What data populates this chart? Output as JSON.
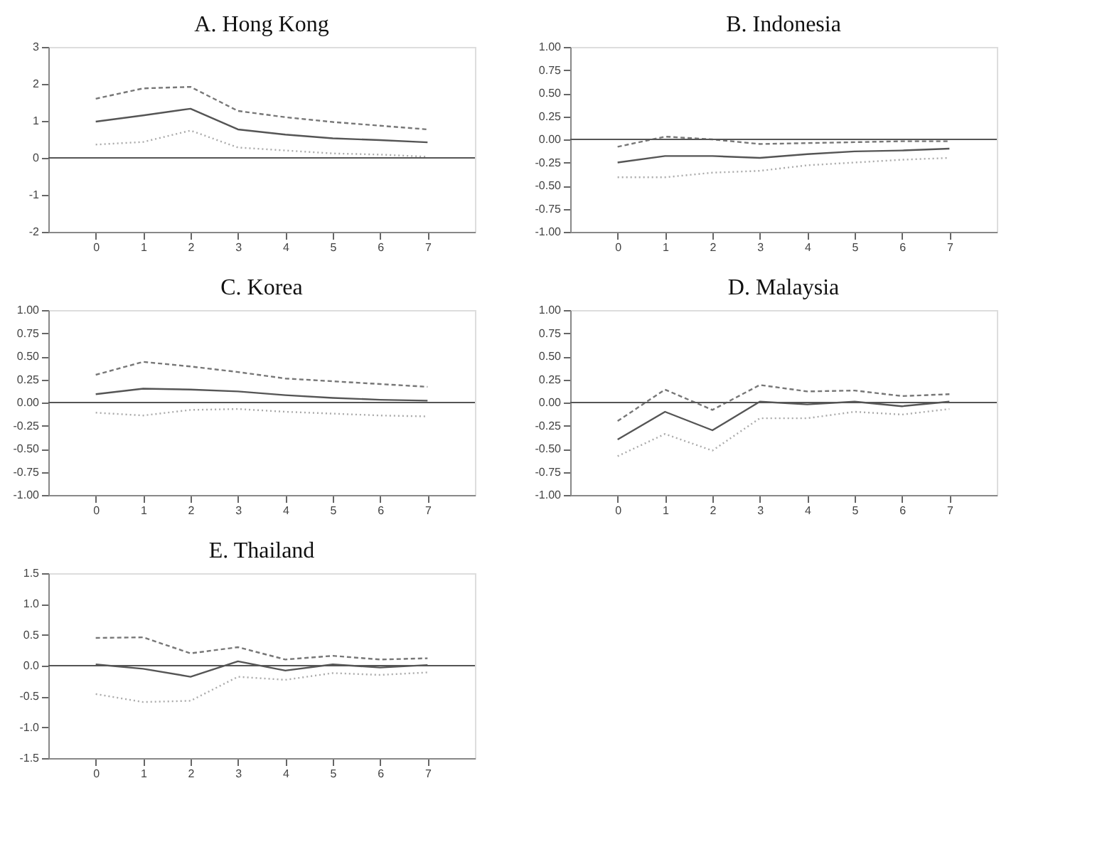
{
  "chart_data": [
    {
      "type": "line",
      "title": "A. Hong Kong",
      "x": [
        0,
        1,
        2,
        3,
        4,
        5,
        6,
        7
      ],
      "xlim": [
        -1,
        8
      ],
      "xticks": [
        0,
        1,
        2,
        3,
        4,
        5,
        6,
        7
      ],
      "ylim": [
        -2,
        3
      ],
      "yticks": [
        -2,
        -1,
        0,
        1,
        2,
        3
      ],
      "grid": false,
      "ref_lines": [
        {
          "axis": "y",
          "value": 0,
          "color": "#555555"
        }
      ],
      "series": [
        {
          "color": "#777777",
          "line_style": "dashed",
          "values": [
            1.6,
            1.88,
            1.92,
            1.27,
            1.1,
            0.97,
            0.87,
            0.77
          ]
        },
        {
          "color": "#555555",
          "line_style": "solid",
          "values": [
            0.98,
            1.15,
            1.33,
            0.77,
            0.63,
            0.53,
            0.48,
            0.42
          ]
        },
        {
          "color": "#aaaaaa",
          "line_style": "dotted",
          "values": [
            0.36,
            0.43,
            0.74,
            0.28,
            0.2,
            0.12,
            0.09,
            0.03
          ]
        }
      ]
    },
    {
      "type": "line",
      "title": "B. Indonesia",
      "x": [
        0,
        1,
        2,
        3,
        4,
        5,
        6,
        7
      ],
      "xlim": [
        -1,
        8
      ],
      "xticks": [
        0,
        1,
        2,
        3,
        4,
        5,
        6,
        7
      ],
      "ylim": [
        -1,
        1
      ],
      "yticks": [
        {
          "value": -1,
          "label": "-1.00"
        },
        {
          "value": -0.75,
          "label": "-0.75"
        },
        {
          "value": -0.5,
          "label": "-0.50"
        },
        {
          "value": -0.25,
          "label": "-0.25"
        },
        {
          "value": 0,
          "label": "0.00"
        },
        {
          "value": 0.25,
          "label": "0.25"
        },
        {
          "value": 0.5,
          "label": "0.50"
        },
        {
          "value": 0.75,
          "label": "0.75"
        },
        {
          "value": 1,
          "label": "1.00"
        }
      ],
      "grid": false,
      "ref_lines": [
        {
          "axis": "y",
          "value": 0,
          "color": "#555555"
        }
      ],
      "series": [
        {
          "color": "#777777",
          "line_style": "dashed",
          "values": [
            -0.08,
            0.03,
            0.0,
            -0.05,
            -0.04,
            -0.03,
            -0.02,
            -0.02
          ]
        },
        {
          "color": "#555555",
          "line_style": "solid",
          "values": [
            -0.25,
            -0.18,
            -0.18,
            -0.2,
            -0.16,
            -0.13,
            -0.12,
            -0.1
          ]
        },
        {
          "color": "#aaaaaa",
          "line_style": "dotted",
          "values": [
            -0.41,
            -0.41,
            -0.36,
            -0.34,
            -0.28,
            -0.25,
            -0.22,
            -0.2
          ]
        }
      ]
    },
    {
      "type": "line",
      "title": "C. Korea",
      "x": [
        0,
        1,
        2,
        3,
        4,
        5,
        6,
        7
      ],
      "xlim": [
        -1,
        8
      ],
      "xticks": [
        0,
        1,
        2,
        3,
        4,
        5,
        6,
        7
      ],
      "ylim": [
        -1,
        1
      ],
      "yticks": [
        {
          "value": -1,
          "label": "-1.00"
        },
        {
          "value": -0.75,
          "label": "-0.75"
        },
        {
          "value": -0.5,
          "label": "-0.50"
        },
        {
          "value": -0.25,
          "label": "-0.25"
        },
        {
          "value": 0,
          "label": "0.00"
        },
        {
          "value": 0.25,
          "label": "0.25"
        },
        {
          "value": 0.5,
          "label": "0.50"
        },
        {
          "value": 0.75,
          "label": "0.75"
        },
        {
          "value": 1,
          "label": "1.00"
        }
      ],
      "grid": false,
      "ref_lines": [
        {
          "axis": "y",
          "value": 0,
          "color": "#555555"
        }
      ],
      "series": [
        {
          "color": "#777777",
          "line_style": "dashed",
          "values": [
            0.3,
            0.44,
            0.39,
            0.33,
            0.26,
            0.23,
            0.2,
            0.17
          ]
        },
        {
          "color": "#555555",
          "line_style": "solid",
          "values": [
            0.09,
            0.15,
            0.14,
            0.12,
            0.08,
            0.05,
            0.03,
            0.02
          ]
        },
        {
          "color": "#aaaaaa",
          "line_style": "dotted",
          "values": [
            -0.11,
            -0.14,
            -0.08,
            -0.07,
            -0.1,
            -0.12,
            -0.14,
            -0.15
          ]
        }
      ]
    },
    {
      "type": "line",
      "title": "D. Malaysia",
      "x": [
        0,
        1,
        2,
        3,
        4,
        5,
        6,
        7
      ],
      "xlim": [
        -1,
        8
      ],
      "xticks": [
        0,
        1,
        2,
        3,
        4,
        5,
        6,
        7
      ],
      "ylim": [
        -1,
        1
      ],
      "yticks": [
        {
          "value": -1,
          "label": "-1.00"
        },
        {
          "value": -0.75,
          "label": "-0.75"
        },
        {
          "value": -0.5,
          "label": "-0.50"
        },
        {
          "value": -0.25,
          "label": "-0.25"
        },
        {
          "value": 0,
          "label": "0.00"
        },
        {
          "value": 0.25,
          "label": "0.25"
        },
        {
          "value": 0.5,
          "label": "0.50"
        },
        {
          "value": 0.75,
          "label": "0.75"
        },
        {
          "value": 1,
          "label": "1.00"
        }
      ],
      "grid": false,
      "ref_lines": [
        {
          "axis": "y",
          "value": 0,
          "color": "#555555"
        }
      ],
      "series": [
        {
          "color": "#777777",
          "line_style": "dashed",
          "values": [
            -0.2,
            0.14,
            -0.08,
            0.19,
            0.12,
            0.13,
            0.07,
            0.09
          ]
        },
        {
          "color": "#555555",
          "line_style": "solid",
          "values": [
            -0.4,
            -0.1,
            -0.3,
            0.01,
            -0.02,
            0.01,
            -0.04,
            0.01
          ]
        },
        {
          "color": "#aaaaaa",
          "line_style": "dotted",
          "values": [
            -0.58,
            -0.34,
            -0.52,
            -0.17,
            -0.17,
            -0.1,
            -0.13,
            -0.07
          ]
        }
      ]
    },
    {
      "type": "line",
      "title": "E. Thailand",
      "x": [
        0,
        1,
        2,
        3,
        4,
        5,
        6,
        7
      ],
      "xlim": [
        -1,
        8
      ],
      "xticks": [
        0,
        1,
        2,
        3,
        4,
        5,
        6,
        7
      ],
      "ylim": [
        -1.5,
        1.5
      ],
      "yticks": [
        -1.5,
        {
          "value": -1,
          "label": "-1.0"
        },
        -0.5,
        {
          "value": 0,
          "label": "0.0"
        },
        0.5,
        {
          "value": 1,
          "label": "1.0"
        },
        1.5
      ],
      "grid": false,
      "ref_lines": [
        {
          "axis": "y",
          "value": 0,
          "color": "#555555"
        }
      ],
      "series": [
        {
          "color": "#777777",
          "line_style": "dashed",
          "values": [
            0.45,
            0.46,
            0.2,
            0.3,
            0.1,
            0.16,
            0.1,
            0.12
          ]
        },
        {
          "color": "#555555",
          "line_style": "solid",
          "values": [
            0.02,
            -0.05,
            -0.18,
            0.07,
            -0.08,
            0.02,
            -0.03,
            0.01
          ]
        },
        {
          "color": "#aaaaaa",
          "line_style": "dotted",
          "values": [
            -0.46,
            -0.59,
            -0.57,
            -0.18,
            -0.23,
            -0.12,
            -0.15,
            -0.11
          ]
        }
      ]
    }
  ]
}
